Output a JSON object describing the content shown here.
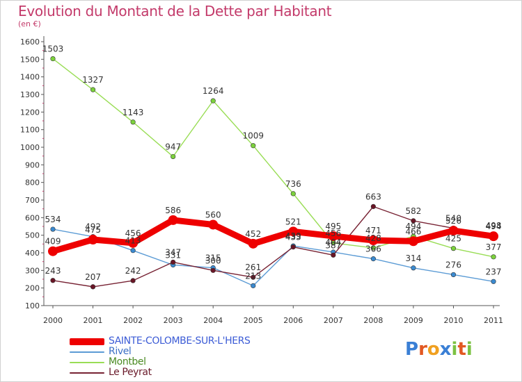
{
  "header": {
    "title": "Evolution du Montant de la Dette par Habitant",
    "unit": "(en €)"
  },
  "chart_data": {
    "type": "line",
    "title": "Evolution du Montant de la Dette par Habitant",
    "ylabel": "(en €)",
    "xlabel": "",
    "ylim": [
      100,
      1600
    ],
    "ytick_step": 100,
    "grid": false,
    "legend_position": "bottom-left",
    "categories": [
      "2000",
      "2001",
      "2002",
      "2003",
      "2004",
      "2005",
      "2006",
      "2007",
      "2008",
      "2009",
      "2010",
      "2011"
    ],
    "series": [
      {
        "name": "SAINTE-COLOMBE-SUR-L'HERS",
        "color": "#ee0000",
        "emphasis": true,
        "values": [
          409,
          475,
          456,
          586,
          560,
          452,
          521,
          495,
          471,
          466,
          526,
          494
        ]
      },
      {
        "name": "Rivel",
        "color": "#5b9bd5",
        "values": [
          534,
          492,
          413,
          331,
          315,
          213,
          439,
          404,
          366,
          314,
          276,
          237
        ]
      },
      {
        "name": "Montbel",
        "color": "#99dd55",
        "values": [
          1503,
          1327,
          1143,
          947,
          1264,
          1009,
          736,
          456,
          428,
          494,
          425,
          377
        ]
      },
      {
        "name": "Le Peyrat",
        "color": "#772233",
        "values": [
          243,
          207,
          242,
          347,
          300,
          261,
          433,
          387,
          663,
          582,
          540,
          498
        ]
      }
    ]
  },
  "logo": {
    "letters": [
      "P",
      "r",
      "o",
      "x",
      "i",
      "t",
      "i"
    ],
    "colors": [
      "#3a7fd5",
      "#e25822",
      "#f0a020",
      "#3a7fd5",
      "#7cc243",
      "#e25822",
      "#7cc243"
    ]
  }
}
